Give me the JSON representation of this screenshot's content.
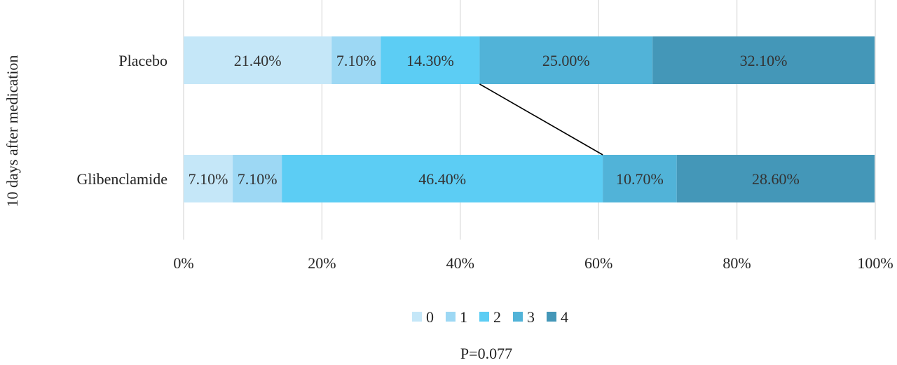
{
  "chart_data": {
    "type": "bar",
    "orientation": "horizontal",
    "stacked": true,
    "ylabel": "10 days after medication",
    "categories": [
      "Placebo",
      "Glibenclamide"
    ],
    "x_ticks": [
      "0%",
      "20%",
      "40%",
      "60%",
      "80%",
      "100%"
    ],
    "xlim": [
      0,
      100
    ],
    "grid": true,
    "legend_position": "bottom",
    "series": [
      {
        "name": "0",
        "values": [
          21.4,
          7.1
        ],
        "labels": [
          "21.40%",
          "7.10%"
        ],
        "color": "#c5e7f8"
      },
      {
        "name": "1",
        "values": [
          7.1,
          7.1
        ],
        "labels": [
          "7.10%",
          "7.10%"
        ],
        "color": "#9dd8f4"
      },
      {
        "name": "2",
        "values": [
          14.3,
          46.4
        ],
        "labels": [
          "14.30%",
          "46.40%"
        ],
        "color": "#5ccdf4"
      },
      {
        "name": "3",
        "values": [
          25.0,
          10.7
        ],
        "labels": [
          "25.00%",
          "10.70%"
        ],
        "color": "#51b3d8"
      },
      {
        "name": "4",
        "values": [
          32.1,
          28.6
        ],
        "labels": [
          "32.10%",
          "28.60%"
        ],
        "color": "#4497b8"
      }
    ],
    "annotation": "P=0.077"
  }
}
